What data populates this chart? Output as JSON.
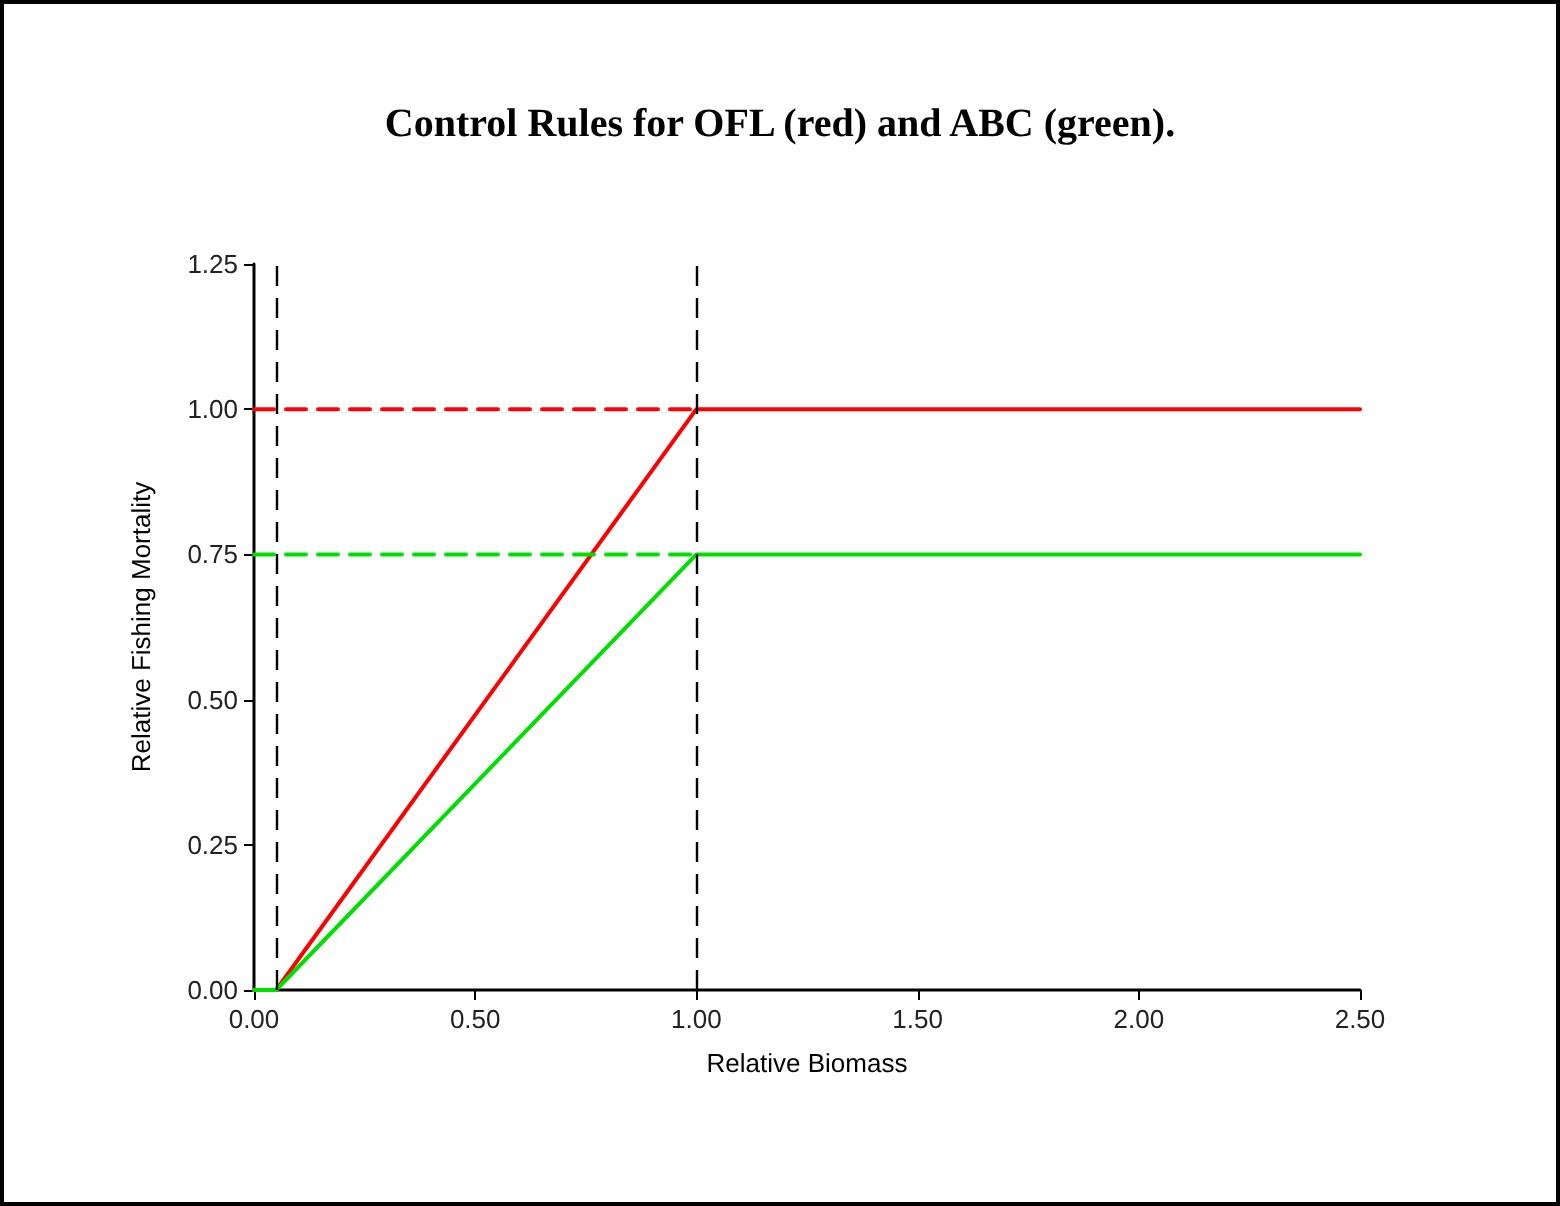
{
  "chart_data": {
    "type": "line",
    "title": "Control Rules for OFL (red) and ABC (green).",
    "xlabel": "Relative Biomass",
    "ylabel": "Relative Fishing Mortality",
    "series": [
      {
        "color": "#ff0000",
        "x": [
          0,
          0.05,
          1,
          2.5
        ],
        "values": [
          0,
          0,
          1,
          1
        ]
      },
      {
        "color": "#00e000",
        "x": [
          0,
          0.05,
          1,
          2.5
        ],
        "values": [
          0,
          0,
          0.75,
          0.75
        ]
      },
      {
        "color": "#ff0000",
        "x": [
          0,
          1
        ],
        "values": [
          1,
          1
        ],
        "line_style": "dashed"
      },
      {
        "color": "#00e000",
        "x": [
          0,
          1
        ],
        "values": [
          0.75,
          0.75
        ],
        "line_style": "dashed"
      }
    ],
    "ref_lines": [
      {
        "axis": "x",
        "value": 0.05,
        "color": "#000000",
        "line_style": "dashed"
      },
      {
        "axis": "x",
        "value": 1,
        "color": "#000000",
        "line_style": "dashed"
      }
    ],
    "xlim": [
      0,
      2.5
    ],
    "xticks": [
      {
        "value": 0,
        "label": "0.00"
      },
      {
        "value": 0.5,
        "label": "0.50"
      },
      {
        "value": 1,
        "label": "1.00"
      },
      {
        "value": 1.5,
        "label": "1.50"
      },
      {
        "value": 2,
        "label": "2.00"
      },
      {
        "value": 2.5,
        "label": "2.50"
      }
    ],
    "ylim": [
      0,
      1.25
    ],
    "yticks": [
      {
        "value": 0,
        "label": "0.00"
      },
      {
        "value": 0.25,
        "label": "0.25"
      },
      {
        "value": 0.5,
        "label": "0.50"
      },
      {
        "value": 0.75,
        "label": "0.75"
      },
      {
        "value": 1,
        "label": "1.00"
      },
      {
        "value": 1.25,
        "label": "1.25"
      }
    ],
    "grid": false,
    "marker": "none",
    "line_style": "solid"
  }
}
